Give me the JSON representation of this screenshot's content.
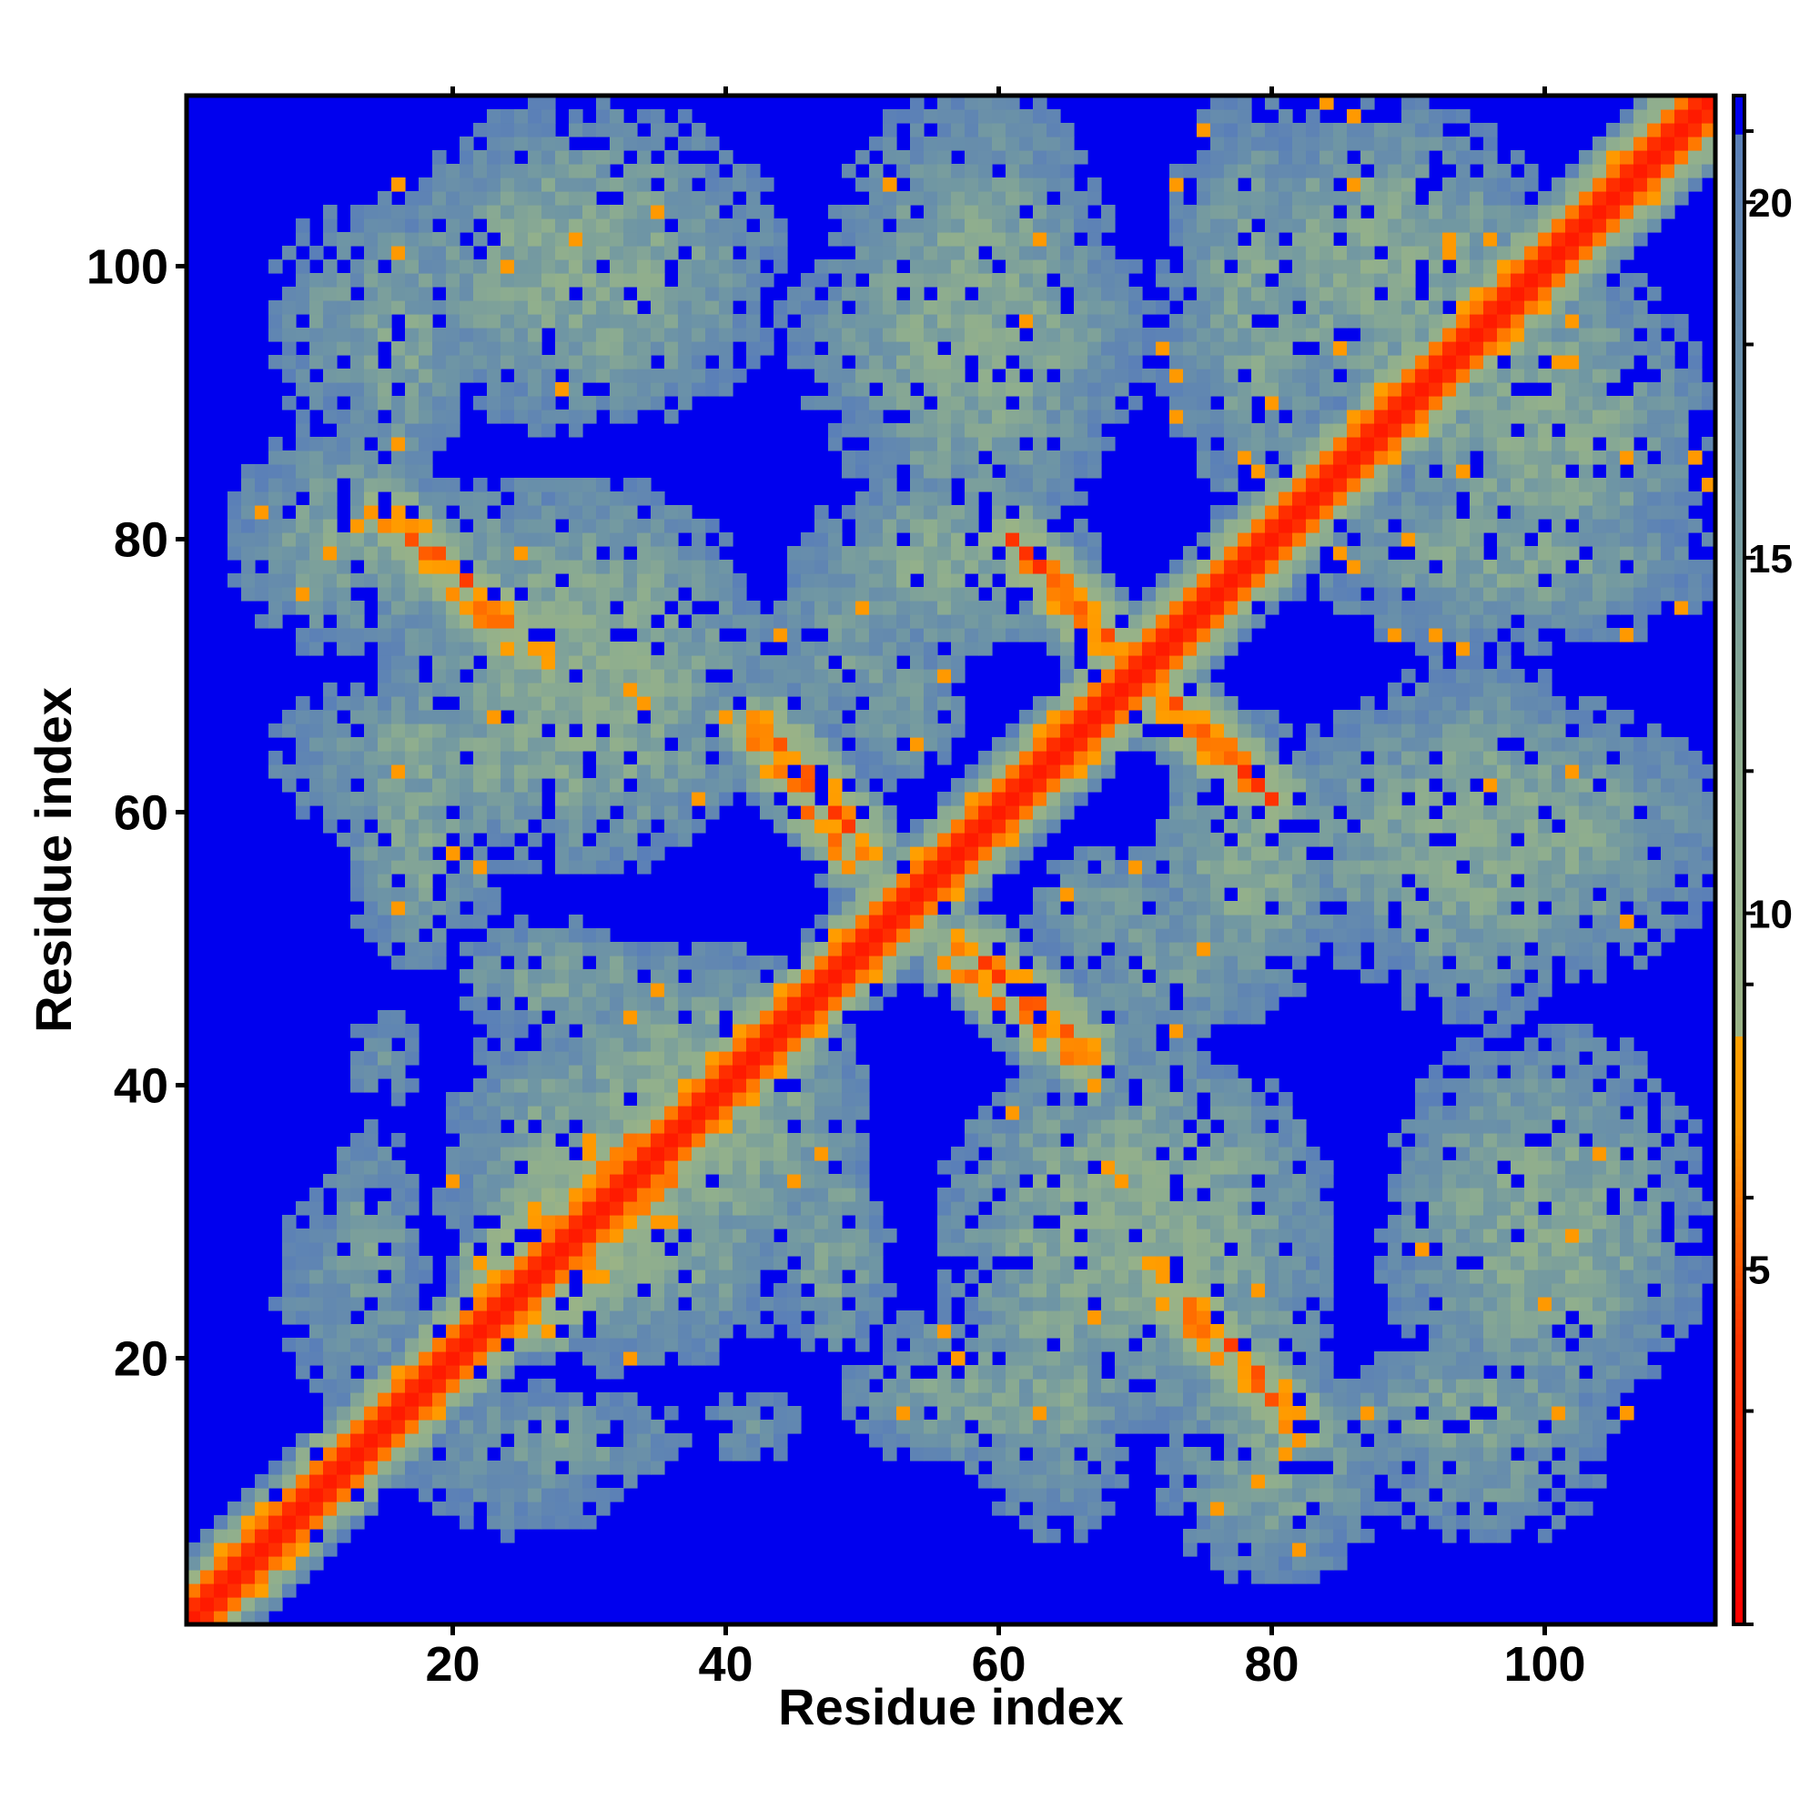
{
  "chart_data": {
    "type": "heatmap",
    "title": "",
    "xlabel": "Residue index",
    "ylabel": "Residue index",
    "xlim": [
      1,
      112
    ],
    "ylim": [
      1,
      112
    ],
    "x_ticks": [
      20,
      40,
      60,
      80,
      100
    ],
    "x_tick_labels": [
      "20",
      "40",
      "60",
      "80",
      "100"
    ],
    "y_ticks": [
      20,
      40,
      60,
      80,
      100
    ],
    "y_tick_labels": [
      "20",
      "40",
      "60",
      "80",
      "100"
    ],
    "grid": false,
    "colorbar": {
      "range": [
        0,
        21.5
      ],
      "ticks": [
        5,
        10,
        15,
        20
      ],
      "tick_labels": [
        "5",
        "10",
        "15",
        "20"
      ],
      "cutoff": 21,
      "stops": [
        {
          "value": 0,
          "color": "#ff0000"
        },
        {
          "value": 4,
          "color": "#ff3300"
        },
        {
          "value": 7,
          "color": "#ff9900"
        },
        {
          "value": 8.3,
          "color": "#ffa000"
        },
        {
          "value": 8.31,
          "color": "#9ab386"
        },
        {
          "value": 12,
          "color": "#8fae8e"
        },
        {
          "value": 16,
          "color": "#6f96a4"
        },
        {
          "value": 21,
          "color": "#5a7fb8"
        },
        {
          "value": 21.01,
          "color": "#0000ee"
        }
      ]
    },
    "n_residues": 112,
    "background_color": "#0000ee",
    "diagonal": {
      "value": 2
    },
    "contact_bands": [
      {
        "a": [
          1,
          112
        ],
        "b": [
          1,
          112
        ],
        "core": 2,
        "width": 3.2
      },
      {
        "a": [
          16,
          26
        ],
        "b": [
          81,
          72
        ],
        "core": 6,
        "width": 2.4
      },
      {
        "a": [
          43,
          50
        ],
        "b": [
          66,
          58
        ],
        "core": 6,
        "width": 2.2
      },
      {
        "a": [
          57,
          66
        ],
        "b": [
          49,
          42
        ],
        "core": 6.5,
        "width": 2.2
      },
      {
        "a": [
          61,
          68
        ],
        "b": [
          80,
          72
        ],
        "core": 6,
        "width": 2.2
      },
      {
        "a": [
          71,
          80
        ],
        "b": [
          70,
          61
        ],
        "core": 6,
        "width": 2.2
      },
      {
        "a": [
          73,
          82
        ],
        "b": [
          24,
          15
        ],
        "core": 6.5,
        "width": 2.4
      },
      {
        "a": [
          27,
          36
        ],
        "b": [
          23,
          34
        ],
        "core": 7,
        "width": 2.4
      },
      {
        "a": [
          88,
          101
        ],
        "b": [
          88,
          101
        ],
        "core": 6.5,
        "width": 2.2
      }
    ],
    "contact_blobs": [
      {
        "x": 28,
        "y": 101,
        "rx": 11,
        "ry": 9,
        "v": 13
      },
      {
        "x": 12,
        "y": 96,
        "rx": 6,
        "ry": 9,
        "v": 16
      },
      {
        "x": 20,
        "y": 78,
        "rx": 9,
        "ry": 6,
        "v": 14
      },
      {
        "x": 20,
        "y": 64,
        "rx": 13,
        "ry": 6,
        "v": 14
      },
      {
        "x": 28,
        "y": 48,
        "rx": 8,
        "ry": 4,
        "v": 14
      },
      {
        "x": 38,
        "y": 38,
        "rx": 11,
        "ry": 11,
        "v": 12
      },
      {
        "x": 33,
        "y": 29,
        "rx": 12,
        "ry": 9,
        "v": 13
      },
      {
        "x": 12,
        "y": 25,
        "rx": 6,
        "ry": 10,
        "v": 17
      },
      {
        "x": 27,
        "y": 14,
        "rx": 11,
        "ry": 4,
        "v": 15
      },
      {
        "x": 58,
        "y": 95,
        "rx": 12,
        "ry": 10,
        "v": 13
      },
      {
        "x": 56,
        "y": 78,
        "rx": 10,
        "ry": 6,
        "v": 13
      },
      {
        "x": 88,
        "y": 100,
        "rx": 12,
        "ry": 11,
        "v": 13
      },
      {
        "x": 97,
        "y": 79,
        "rx": 15,
        "ry": 7,
        "v": 14
      },
      {
        "x": 96,
        "y": 58,
        "rx": 16,
        "ry": 10,
        "v": 13
      },
      {
        "x": 70,
        "y": 29,
        "rx": 13,
        "ry": 13,
        "v": 12
      },
      {
        "x": 58,
        "y": 18,
        "rx": 9,
        "ry": 6,
        "v": 14
      },
      {
        "x": 100,
        "y": 30,
        "rx": 11,
        "ry": 13,
        "v": 13
      },
      {
        "x": 80,
        "y": 12,
        "rx": 8,
        "ry": 8,
        "v": 14
      },
      {
        "x": 95,
        "y": 16,
        "rx": 10,
        "ry": 5,
        "v": 14
      },
      {
        "x": 52,
        "y": 68,
        "rx": 6,
        "ry": 6,
        "v": 15
      },
      {
        "x": 72,
        "y": 48,
        "rx": 6,
        "ry": 6,
        "v": 15
      },
      {
        "x": 42,
        "y": 15,
        "rx": 4,
        "ry": 3,
        "v": 17
      }
    ]
  }
}
